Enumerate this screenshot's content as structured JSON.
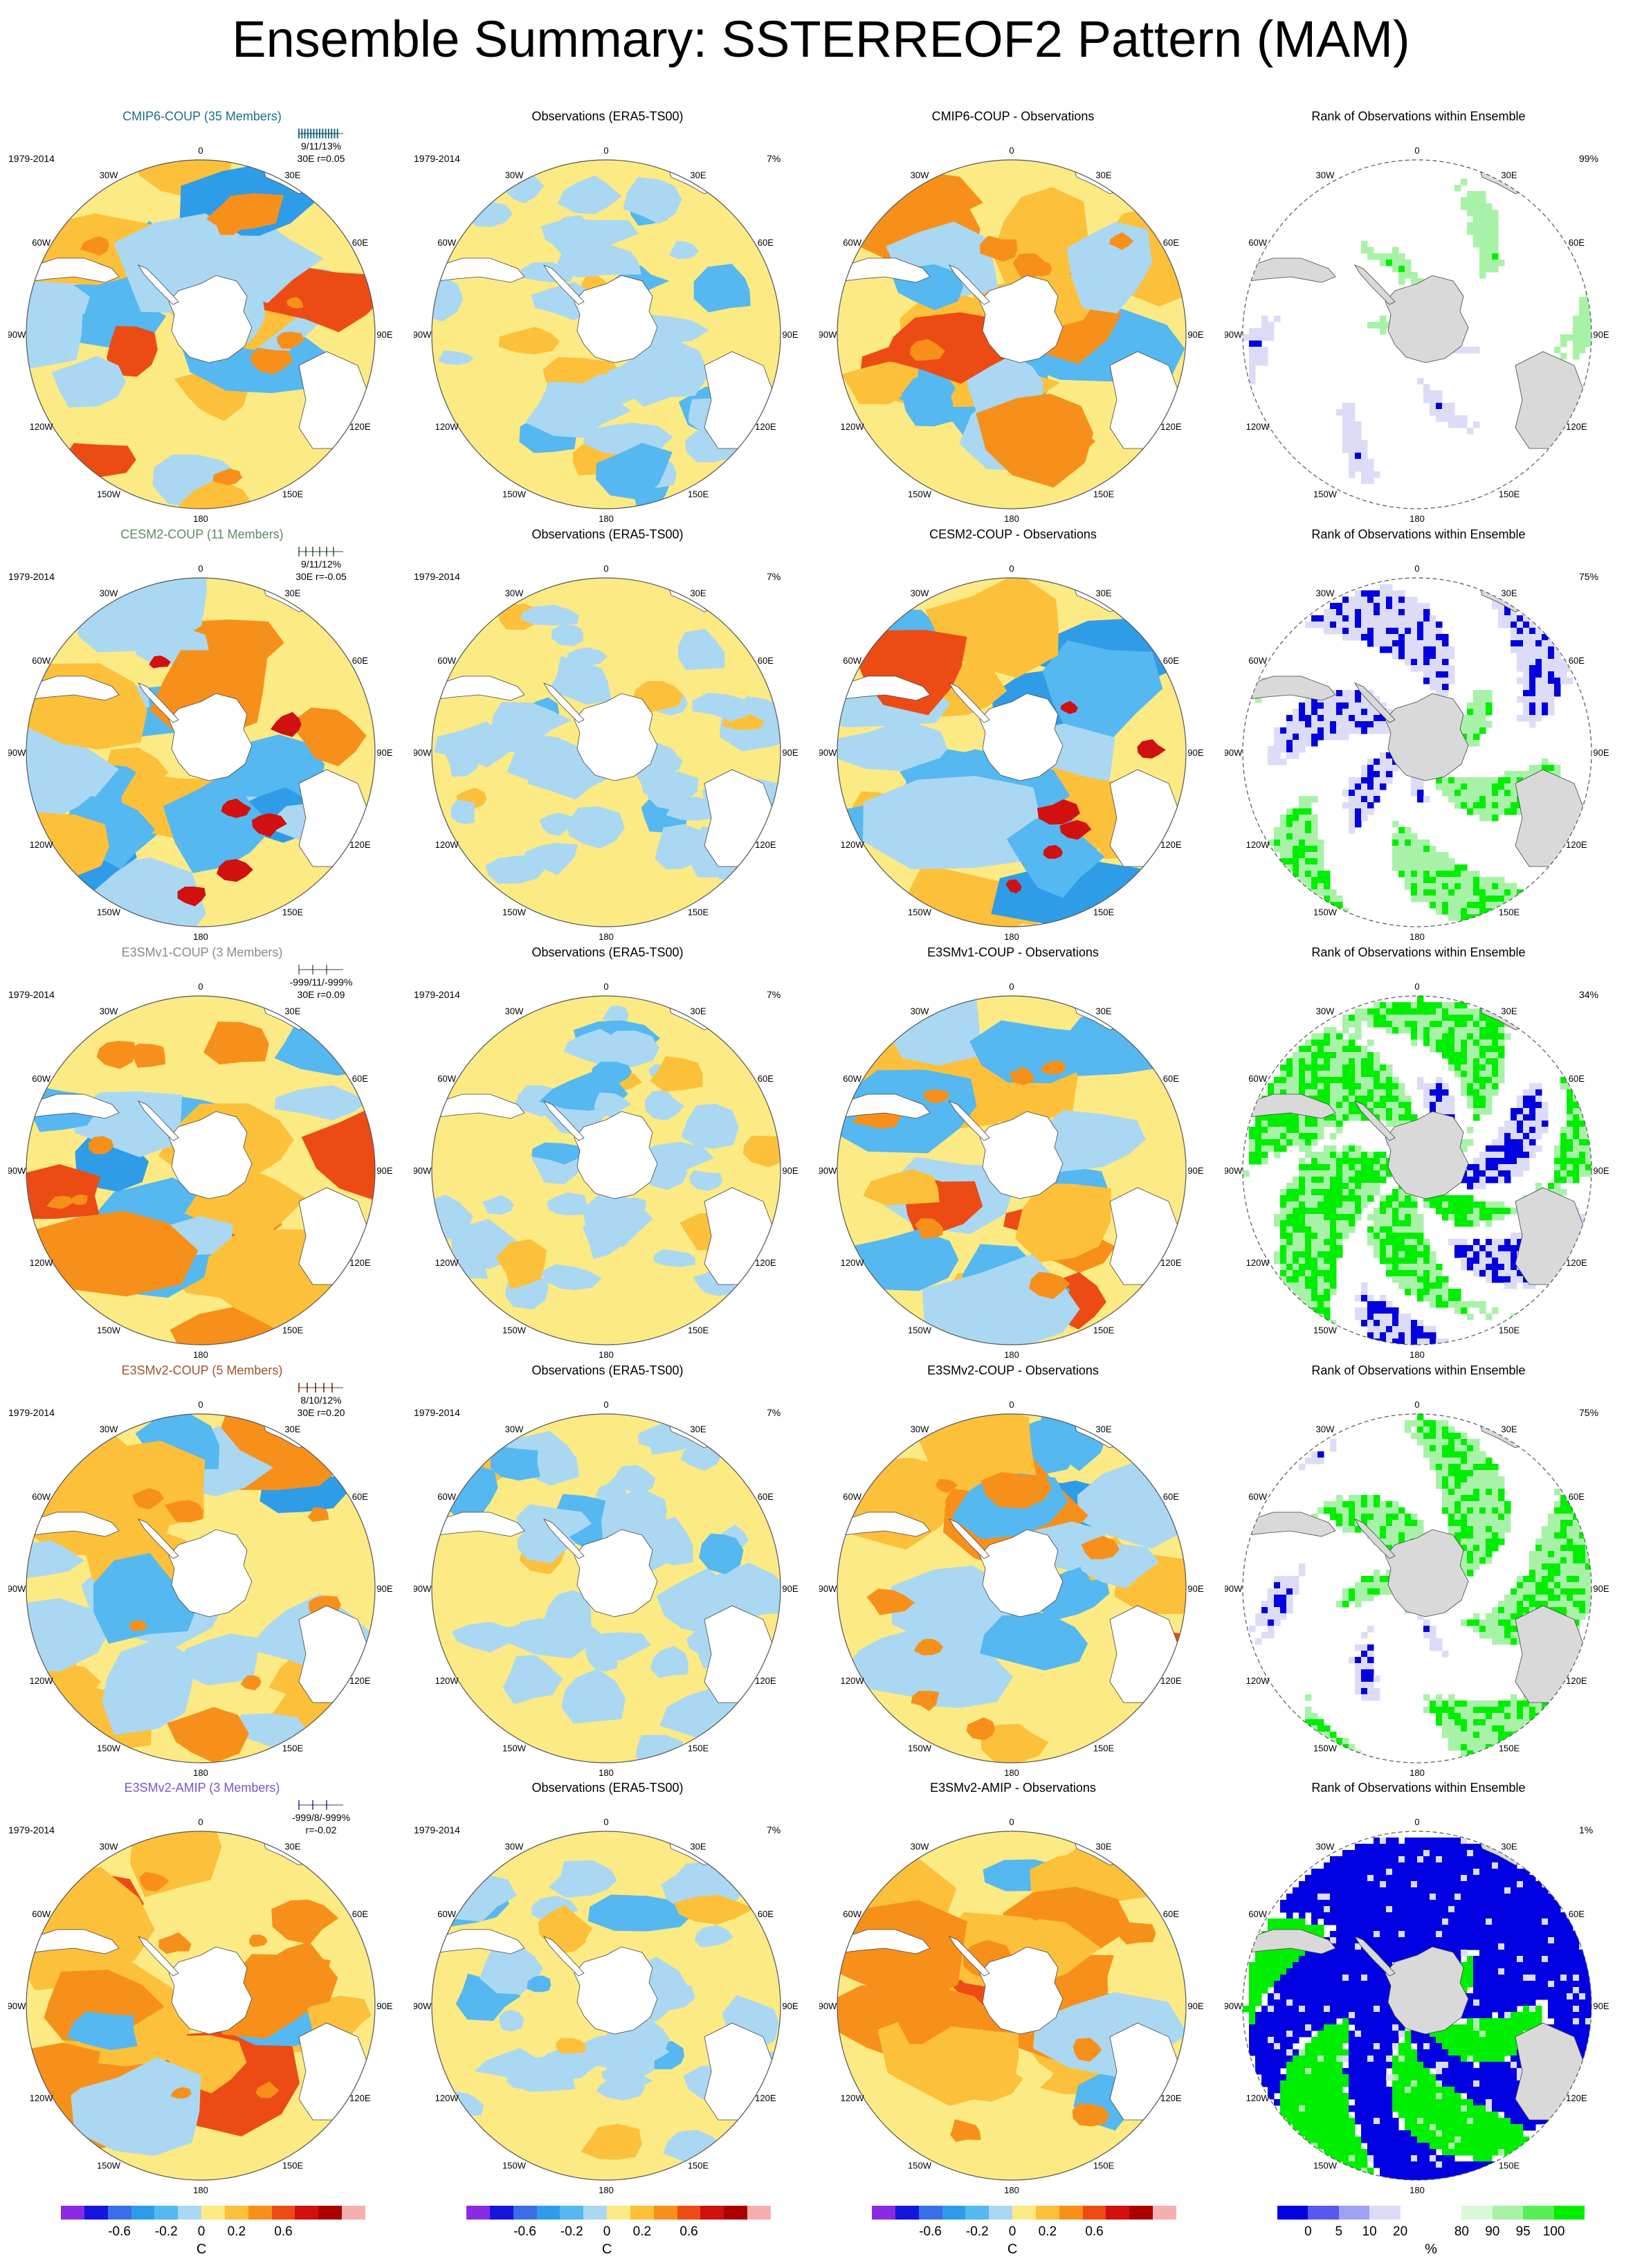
{
  "title": "Ensemble Summary: SSTERREOF2 Pattern (MAM)",
  "colors": {
    "title_cmip6": "#1a6e8e",
    "title_cesm2": "#5e8a62",
    "title_e3smv1": "#8a8a8a",
    "title_e3smv2coup": "#a0522d",
    "title_e3smv2amip": "#7d55c7",
    "land": "#d9d9d9",
    "anom_scale": [
      "#8a2be2",
      "#1515dc",
      "#3a6ee6",
      "#2f9ce8",
      "#55b8f0",
      "#aad8f2",
      "#fcea84",
      "#fcc03a",
      "#f7901a",
      "#ec4c14",
      "#d11010",
      "#aa0000",
      "#f7b0b0"
    ],
    "rank_scale": [
      "#0000e0",
      "#5858ee",
      "#a0a0f4",
      "#dcdcf8",
      "#ffffff",
      "#ffffff",
      "#d8f8d8",
      "#a8f2a8",
      "#58ee58",
      "#00ee00"
    ]
  },
  "rows": [
    {
      "model_title": "CMIP6-COUP (35 Members)",
      "period": "1979-2014",
      "stats_line1": "9/11/13%",
      "stats_line2": "30E   r=0.05",
      "obs_title": "Observations (ERA5-TS00)",
      "obs_period": "1979-2014",
      "obs_pct": "7%",
      "diff_title": "CMIP6-COUP - Observations",
      "rank_title": "Rank of Observations within Ensemble",
      "rank_pct": "99%"
    },
    {
      "model_title": "CESM2-COUP (11 Members)",
      "period": "1979-2014",
      "stats_line1": "9/11/12%",
      "stats_line2": "30E   r=-0.05",
      "obs_title": "Observations (ERA5-TS00)",
      "obs_period": "1979-2014",
      "obs_pct": "7%",
      "diff_title": "CESM2-COUP - Observations",
      "rank_title": "Rank of Observations within Ensemble",
      "rank_pct": "75%"
    },
    {
      "model_title": "E3SMv1-COUP (3 Members)",
      "period": "1979-2014",
      "stats_line1": "-999/11/-999%",
      "stats_line2": "30E  r=0.09",
      "obs_title": "Observations (ERA5-TS00)",
      "obs_period": "1979-2014",
      "obs_pct": "7%",
      "diff_title": "E3SMv1-COUP - Observations",
      "rank_title": "Rank of Observations within Ensemble",
      "rank_pct": "34%"
    },
    {
      "model_title": "E3SMv2-COUP (5 Members)",
      "period": "1979-2014",
      "stats_line1": "8/10/12%",
      "stats_line2": "30E  r=0.20",
      "obs_title": "Observations (ERA5-TS00)",
      "obs_period": "1979-2014",
      "obs_pct": "7%",
      "diff_title": "E3SMv2-COUP - Observations",
      "rank_title": "Rank of Observations within Ensemble",
      "rank_pct": "75%"
    },
    {
      "model_title": "E3SMv2-AMIP (3 Members)",
      "period": "1979-2014",
      "stats_line1": "-999/8/-999%",
      "stats_line2": "r=-0.02",
      "obs_title": "Observations (ERA5-TS00)",
      "obs_period": "1979-2014",
      "obs_pct": "7%",
      "diff_title": "E3SMv2-AMIP - Observations",
      "rank_title": "Rank of Observations within Ensemble",
      "rank_pct": "1%"
    }
  ],
  "lon_labels": [
    "0",
    "30E",
    "60E",
    "90E",
    "120E",
    "150E",
    "180",
    "150W",
    "120W",
    "90W",
    "60W",
    "30W"
  ],
  "anom_colorbar": {
    "ticks": [
      "-0.6",
      "-0.2",
      "0",
      "0.2",
      "0.6"
    ],
    "unit": "C"
  },
  "rank_colorbar": {
    "ticks": [
      "0",
      "5",
      "10",
      "20",
      "80",
      "90",
      "95",
      "100"
    ],
    "unit": "%"
  },
  "chart_data": {
    "type": "heatmap",
    "description_axes": "polar stereographic Southern Hemisphere maps",
    "rows": [
      "CMIP6-COUP",
      "CESM2-COUP",
      "E3SMv1-COUP",
      "E3SMv2-COUP",
      "E3SMv2-AMIP"
    ],
    "columns": [
      "Model",
      "Observations (ERA5-TS00)",
      "Model - Observations",
      "Rank of Observations within Ensemble"
    ],
    "anomaly_levels": [
      -0.8,
      -0.6,
      -0.4,
      -0.2,
      -0.1,
      0,
      0.1,
      0.2,
      0.4,
      0.6,
      0.8,
      1.0
    ],
    "rank_levels": [
      0,
      5,
      10,
      20,
      80,
      90,
      95,
      100
    ],
    "explained_variance": {
      "CMIP6-COUP": [
        9,
        11,
        13
      ],
      "CESM2-COUP": [
        9,
        11,
        12
      ],
      "E3SMv1-COUP": [
        -999,
        11,
        -999
      ],
      "E3SMv2-COUP": [
        8,
        10,
        12
      ],
      "E3SMv2-AMIP": [
        -999,
        8,
        -999
      ]
    },
    "pattern_correlation": {
      "CMIP6-COUP": 0.05,
      "CESM2-COUP": -0.05,
      "E3SMv1-COUP": 0.09,
      "E3SMv2-COUP": 0.2,
      "E3SMv2-AMIP": -0.02
    },
    "observations_percent": 7,
    "rank_percent": {
      "CMIP6-COUP": 99,
      "CESM2-COUP": 75,
      "E3SMv1-COUP": 34,
      "E3SMv2-COUP": 75,
      "E3SMv2-AMIP": 1
    }
  }
}
